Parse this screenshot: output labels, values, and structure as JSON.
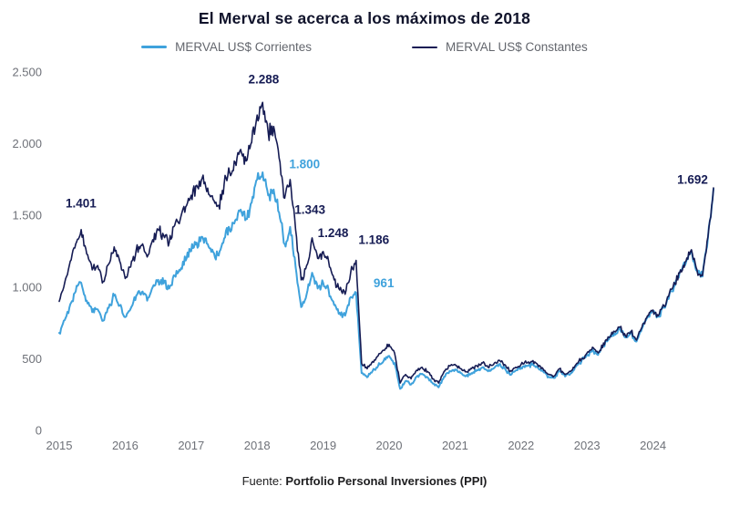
{
  "chart_data": {
    "type": "line",
    "title": "El Merval se acerca a los máximos de 2018",
    "grid": false,
    "legend_position": "top",
    "xlim": [
      2015,
      2025
    ],
    "ylim": [
      0,
      2500
    ],
    "x_start": 2015.0,
    "points_per_year": 12,
    "x_ticks": [
      "2015",
      "2016",
      "2017",
      "2018",
      "2019",
      "2020",
      "2021",
      "2022",
      "2023",
      "2024"
    ],
    "y_ticks": [
      {
        "value": 0,
        "label": "0"
      },
      {
        "value": 500,
        "label": "500"
      },
      {
        "value": 1000,
        "label": "1.000"
      },
      {
        "value": 1500,
        "label": "1.500"
      },
      {
        "value": 2000,
        "label": "2.000"
      },
      {
        "value": 2500,
        "label": "2.500"
      }
    ],
    "series": [
      {
        "key": "corrientes",
        "name": "MERVAL US$ Corrientes",
        "color": "#3FA2DC",
        "values": [
          680,
          770,
          880,
          970,
          1030,
          905,
          825,
          845,
          765,
          855,
          940,
          870,
          790,
          850,
          940,
          965,
          905,
          1000,
          1050,
          1025,
          990,
          1080,
          1115,
          1185,
          1250,
          1310,
          1350,
          1300,
          1245,
          1220,
          1340,
          1405,
          1465,
          1540,
          1475,
          1590,
          1750,
          1800,
          1640,
          1680,
          1520,
          1300,
          1420,
          1140,
          860,
          950,
          1100,
          990,
          1030,
          980,
          875,
          820,
          800,
          930,
          961,
          400,
          370,
          415,
          450,
          485,
          520,
          470,
          290,
          345,
          320,
          375,
          395,
          370,
          325,
          300,
          375,
          415,
          425,
          400,
          380,
          400,
          420,
          440,
          412,
          432,
          462,
          435,
          388,
          418,
          438,
          448,
          458,
          440,
          412,
          374,
          365,
          414,
          376,
          396,
          445,
          485,
          525,
          565,
          527,
          596,
          636,
          676,
          706,
          648,
          678,
          620,
          710,
          790,
          832,
          793,
          863,
          953,
          1013,
          1113,
          1172,
          1252,
          1113,
          1073,
          1343,
          1685
        ]
      },
      {
        "key": "constantes",
        "name": "MERVAL US$ Constantes",
        "color": "#161C54",
        "values": [
          900,
          1030,
          1180,
          1300,
          1401,
          1230,
          1120,
          1150,
          1040,
          1160,
          1280,
          1180,
          1060,
          1140,
          1260,
          1290,
          1210,
          1330,
          1400,
          1360,
          1310,
          1430,
          1470,
          1560,
          1640,
          1710,
          1760,
          1690,
          1610,
          1570,
          1720,
          1800,
          1870,
          1960,
          1880,
          2010,
          2200,
          2288,
          2080,
          2120,
          1900,
          1620,
          1750,
          1400,
          1050,
          1150,
          1343,
          1200,
          1248,
          1180,
          1050,
          980,
          950,
          1100,
          1186,
          470,
          430,
          480,
          520,
          560,
          600,
          540,
          330,
          390,
          360,
          420,
          440,
          410,
          360,
          330,
          410,
          450,
          460,
          430,
          410,
          430,
          450,
          470,
          440,
          460,
          490,
          460,
          410,
          440,
          460,
          470,
          480,
          460,
          430,
          390,
          380,
          430,
          390,
          410,
          460,
          500,
          540,
          580,
          540,
          610,
          650,
          690,
          720,
          660,
          690,
          630,
          720,
          800,
          840,
          800,
          870,
          960,
          1020,
          1120,
          1180,
          1260,
          1120,
          1080,
          1350,
          1692
        ]
      }
    ],
    "annotations": [
      {
        "label": "1.401",
        "x": 2015.33,
        "y": 1555,
        "series": "constantes"
      },
      {
        "label": "2.288",
        "x": 2018.1,
        "y": 2420,
        "series": "constantes"
      },
      {
        "label": "1.800",
        "x": 2018.72,
        "y": 1830,
        "series": "corrientes"
      },
      {
        "label": "1.343",
        "x": 2018.8,
        "y": 1510,
        "series": "constantes"
      },
      {
        "label": "1.248",
        "x": 2019.15,
        "y": 1350,
        "series": "constantes"
      },
      {
        "label": "1.186",
        "x": 2019.77,
        "y": 1300,
        "series": "constantes"
      },
      {
        "label": "961",
        "x": 2019.92,
        "y": 1000,
        "series": "corrientes"
      },
      {
        "label": "1.692",
        "x": 2024.6,
        "y": 1720,
        "series": "constantes"
      }
    ]
  },
  "footer": {
    "prefix": "Fuente:",
    "source": "Portfolio Personal Inversiones (PPI)"
  }
}
